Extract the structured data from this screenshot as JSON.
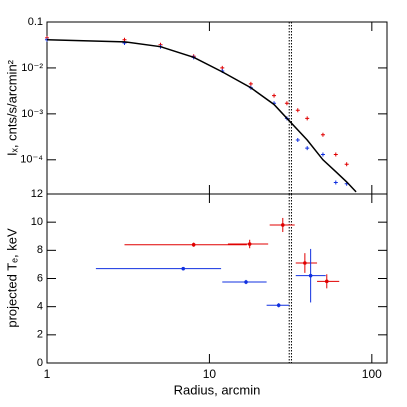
{
  "chart_data": [
    {
      "type": "scatter",
      "ylabel": "Iₓ, cnts/s/arcmin²",
      "xlim": [
        1,
        124
      ],
      "xticks": [
        1,
        10,
        100
      ],
      "log_x": true,
      "ylim": [
        1.8e-05,
        0.1
      ],
      "log_y": true,
      "yticks": [
        0.1,
        {
          "value": 0.01,
          "label": "10⁻²"
        },
        {
          "value": 0.001,
          "label": "10⁻³"
        },
        {
          "value": 0.0001,
          "label": "10⁻⁴"
        }
      ],
      "vlines": [
        31,
        32
      ],
      "series": [
        {
          "color": "#e00000",
          "mode": "markers",
          "x": [
            1,
            3,
            5,
            8,
            12,
            18,
            25,
            30,
            35,
            40,
            50,
            60,
            70
          ],
          "values": [
            0.045,
            0.041,
            0.032,
            0.018,
            0.01,
            0.0045,
            0.0025,
            0.0017,
            0.0012,
            0.0008,
            0.00035,
            0.00013,
            8e-05
          ]
        },
        {
          "color": "#1030e0",
          "mode": "markers",
          "x": [
            1,
            3,
            5,
            8,
            12,
            18,
            25,
            30,
            35,
            40,
            50,
            60,
            70
          ],
          "values": [
            0.041,
            0.035,
            0.029,
            0.017,
            0.0086,
            0.0037,
            0.0017,
            0.0008,
            0.00027,
            0.00018,
            0.00013,
            3.2e-05,
            3e-05
          ]
        },
        {
          "color": "#000000",
          "mode": "line",
          "x": [
            1,
            3,
            5,
            8,
            12,
            18,
            25,
            30,
            40,
            50,
            60,
            70,
            80
          ],
          "values": [
            0.041,
            0.037,
            0.029,
            0.017,
            0.0082,
            0.0037,
            0.0016,
            0.0008,
            0.00027,
            0.0001,
            5.5e-05,
            3.3e-05,
            2e-05
          ]
        }
      ]
    },
    {
      "type": "errorbar",
      "xlabel": "Radius, arcmin",
      "ylabel": "projected Tₑ, keV",
      "xlim": [
        1,
        124
      ],
      "xticks": [
        1,
        10,
        100
      ],
      "log_x": true,
      "ylim": [
        0,
        12
      ],
      "yticks": [
        0,
        2,
        4,
        6,
        8,
        10,
        12
      ],
      "vlines": [
        31,
        32
      ],
      "series": [
        {
          "color": "#e00000",
          "x": [
            8,
            17.7,
            28.3,
            38.7,
            52.8
          ],
          "xlo": [
            3,
            13,
            23.5,
            34,
            46
          ],
          "xhi": [
            17,
            23,
            33.5,
            46,
            63
          ],
          "values": [
            8.4,
            8.45,
            9.8,
            7.1,
            5.8
          ],
          "yerr": [
            0.15,
            0.3,
            0.5,
            0.7,
            0.5
          ]
        },
        {
          "color": "#1030e0",
          "x": [
            6.9,
            16.8,
            26.7,
            42
          ],
          "xlo": [
            2,
            12,
            22.5,
            34
          ],
          "xhi": [
            11.8,
            22.5,
            31,
            52
          ],
          "values": [
            6.7,
            5.75,
            4.1,
            6.2
          ],
          "yerr": [
            0.1,
            0.15,
            0.15,
            1.9
          ]
        }
      ]
    }
  ]
}
